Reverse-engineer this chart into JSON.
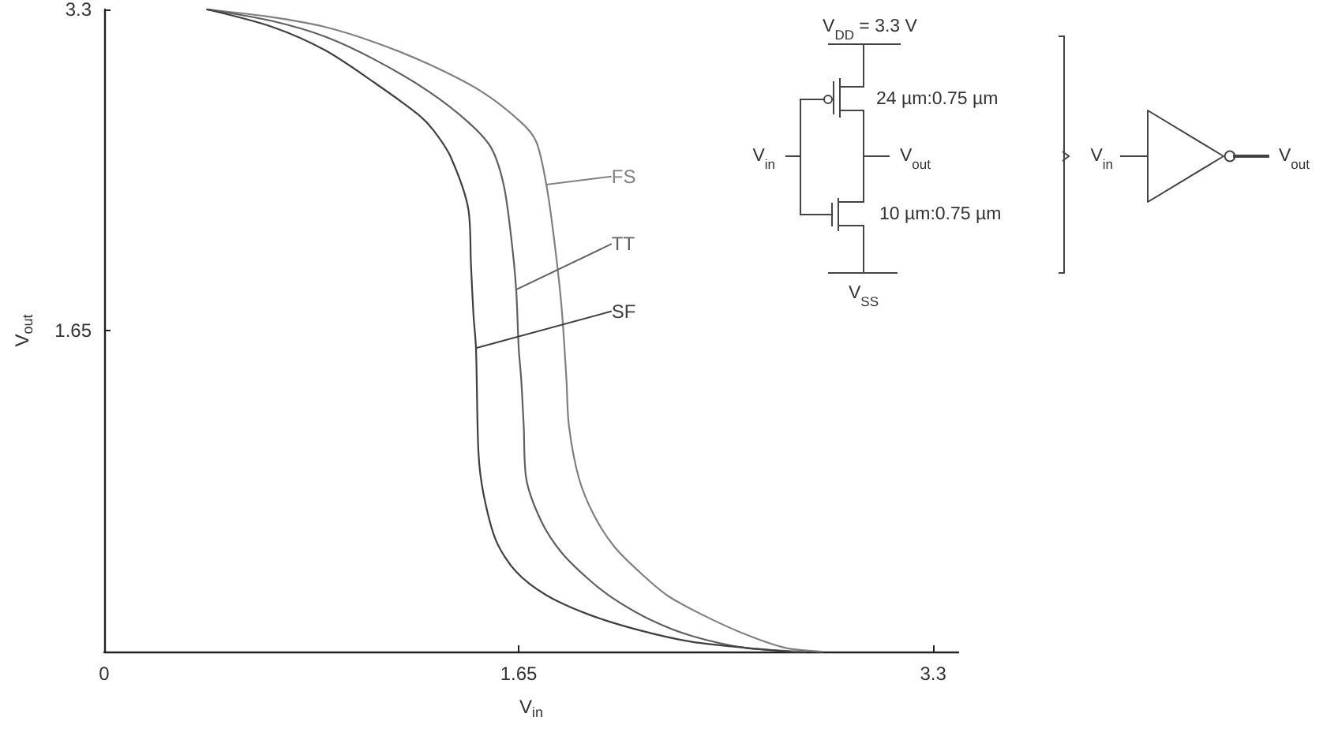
{
  "chart_data": {
    "type": "line",
    "xlabel": "V$_{in}$",
    "ylabel": "V$_{out}$",
    "xlim": [
      0,
      3.4
    ],
    "ylim": [
      0,
      3.3
    ],
    "xticks": [
      0,
      1.65,
      3.3
    ],
    "yticks": [
      1.65,
      3.3
    ],
    "series": [
      {
        "name": "FS",
        "color": "#808080",
        "x": [
          0.41,
          0.67,
          0.88,
          1.08,
          1.29,
          1.5,
          1.66,
          1.72,
          1.76,
          1.79,
          1.82,
          1.84,
          1.85,
          1.89,
          1.95,
          2.03,
          2.13,
          2.24,
          2.38,
          2.55,
          2.71,
          2.86
        ],
        "values": [
          3.3,
          3.26,
          3.21,
          3.13,
          3.02,
          2.88,
          2.72,
          2.62,
          2.4,
          2.13,
          1.78,
          1.4,
          1.16,
          0.89,
          0.7,
          0.54,
          0.41,
          0.29,
          0.19,
          0.09,
          0.02,
          0
        ]
      },
      {
        "name": "TT",
        "color": "#606060",
        "x": [
          0.41,
          0.67,
          0.88,
          1.08,
          1.29,
          1.45,
          1.54,
          1.59,
          1.62,
          1.64,
          1.65,
          1.66,
          1.67,
          1.68,
          1.74,
          1.82,
          1.93,
          2.03,
          2.18,
          2.34,
          2.55,
          2.79
        ],
        "values": [
          3.3,
          3.24,
          3.16,
          3.04,
          2.88,
          2.72,
          2.59,
          2.4,
          2.13,
          1.86,
          1.56,
          1.4,
          1.16,
          0.89,
          0.67,
          0.51,
          0.37,
          0.27,
          0.16,
          0.08,
          0.02,
          0
        ]
      },
      {
        "name": "SF",
        "color": "#404040",
        "x": [
          0.41,
          0.67,
          0.88,
          1.08,
          1.25,
          1.31,
          1.38,
          1.45,
          1.46,
          1.47,
          1.48,
          1.49,
          1.51,
          1.56,
          1.64,
          1.76,
          1.93,
          2.13,
          2.34,
          2.55,
          2.73
        ],
        "values": [
          3.3,
          3.21,
          3.09,
          2.92,
          2.76,
          2.68,
          2.54,
          2.27,
          1.99,
          1.73,
          1.56,
          1.02,
          0.81,
          0.57,
          0.41,
          0.29,
          0.19,
          0.11,
          0.05,
          0.02,
          0
        ]
      }
    ],
    "annotations": [
      "V$_{DD}$ = 3.3 V",
      "24 µm:0.75 µm",
      "V$_{in}$",
      "V$_{out}$",
      "10 µm:0.75 µm",
      "V$_{SS}$",
      "V$_{in}$",
      "V$_{out}$"
    ]
  }
}
